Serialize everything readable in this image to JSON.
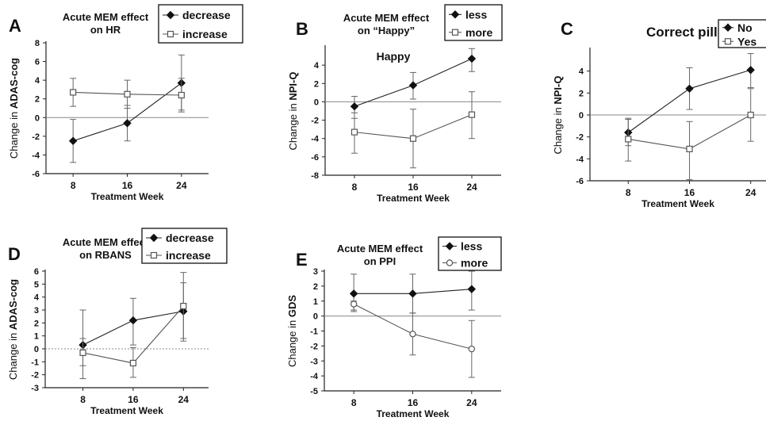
{
  "chart_data": [
    {
      "panel": "A",
      "type": "line",
      "title": [
        "Acute MEM effect",
        "on HR"
      ],
      "xlabel": "Treatment Week",
      "ylabel": [
        "Change in ",
        "ADAS-cog"
      ],
      "x": [
        8,
        16,
        24
      ],
      "xlim": [
        4,
        28
      ],
      "ylim": [
        -6,
        8
      ],
      "yticks": [
        -6,
        -4,
        -2,
        0,
        2,
        4,
        6,
        8
      ],
      "zero_line": "solid",
      "legend_placement": "top-right",
      "series": [
        {
          "name": "decrease",
          "marker": "diamond-filled",
          "values": [
            -2.5,
            -0.6,
            3.7
          ],
          "err_low": [
            -4.8,
            -2.5,
            0.8
          ],
          "err_high": [
            -0.2,
            1.3,
            6.7
          ]
        },
        {
          "name": "increase",
          "marker": "square-open",
          "values": [
            2.7,
            2.5,
            2.4
          ],
          "err_low": [
            1.2,
            1.0,
            0.6
          ],
          "err_high": [
            4.2,
            4.0,
            4.2
          ]
        }
      ]
    },
    {
      "panel": "B",
      "type": "line",
      "title": [
        "Acute MEM effect",
        "on “Happy”"
      ],
      "annotation": "Happy",
      "xlabel": "Treatment Week",
      "ylabel": [
        "Change in ",
        "NPI-Q"
      ],
      "x": [
        8,
        16,
        24
      ],
      "xlim": [
        4,
        28
      ],
      "ylim": [
        -8,
        6
      ],
      "yticks": [
        -8,
        -6,
        -4,
        -2,
        0,
        2,
        4
      ],
      "zero_line": "solid",
      "legend_placement": "top-right",
      "series": [
        {
          "name": "less",
          "marker": "diamond-filled",
          "values": [
            -0.5,
            1.8,
            4.7
          ],
          "err_low": [
            -1.8,
            0.3,
            3.3
          ],
          "err_high": [
            0.6,
            3.2,
            5.8
          ]
        },
        {
          "name": "more",
          "marker": "square-open",
          "values": [
            -3.3,
            -4.0,
            -1.4
          ],
          "err_low": [
            -5.6,
            -7.2,
            -4.0
          ],
          "err_high": [
            -1.2,
            -0.8,
            1.1
          ]
        }
      ]
    },
    {
      "panel": "C",
      "type": "line",
      "title": [
        "Correct pill guess?"
      ],
      "xlabel": "Treatment Week",
      "ylabel": [
        "Change in ",
        "NPI-Q"
      ],
      "x": [
        8,
        16,
        24
      ],
      "xlim": [
        3,
        26
      ],
      "ylim": [
        -6,
        6
      ],
      "yticks": [
        -6,
        -4,
        -2,
        0,
        2,
        4
      ],
      "zero_line": "solid",
      "legend_placement": "top-right",
      "series": [
        {
          "name": "No",
          "marker": "diamond-filled",
          "values": [
            -1.6,
            2.4,
            4.1
          ],
          "err_low": [
            -2.8,
            0.5,
            2.5
          ],
          "err_high": [
            -0.3,
            4.3,
            5.6
          ]
        },
        {
          "name": "Yes",
          "marker": "square-open",
          "values": [
            -2.2,
            -3.1,
            0.0
          ],
          "err_low": [
            -4.2,
            -5.9,
            -2.4
          ],
          "err_high": [
            -0.4,
            -0.6,
            2.4
          ]
        }
      ]
    },
    {
      "panel": "D",
      "type": "line",
      "title": [
        "Acute MEM effect",
        "on RBANS"
      ],
      "xlabel": "Treatment Week",
      "ylabel": [
        "Change in ",
        "ADAS-cog"
      ],
      "x": [
        8,
        16,
        24
      ],
      "xlim": [
        2,
        28
      ],
      "ylim": [
        -3,
        6
      ],
      "yticks": [
        -3,
        -2,
        -1,
        0,
        1,
        2,
        3,
        4,
        5,
        6
      ],
      "zero_line": "dotted",
      "legend_placement": "top-right",
      "series": [
        {
          "name": "decrease",
          "marker": "diamond-filled",
          "values": [
            0.3,
            2.2,
            2.9
          ],
          "err_low": [
            -2.3,
            0.3,
            0.6
          ],
          "err_high": [
            3.0,
            3.9,
            5.1
          ]
        },
        {
          "name": "increase",
          "marker": "square-open",
          "values": [
            -0.3,
            -1.1,
            3.3
          ],
          "err_low": [
            -1.3,
            -2.2,
            0.8
          ],
          "err_high": [
            0.8,
            0.1,
            5.9
          ]
        }
      ]
    },
    {
      "panel": "E",
      "type": "line",
      "title": [
        "Acute MEM effect",
        "on PPI"
      ],
      "xlabel": "Treatment Week",
      "ylabel": [
        "Change in ",
        "GDS"
      ],
      "x": [
        8,
        16,
        24
      ],
      "xlim": [
        4,
        28
      ],
      "ylim": [
        -5,
        3
      ],
      "yticks": [
        -5,
        -4,
        -3,
        -2,
        -1,
        0,
        1,
        2,
        3
      ],
      "zero_line": "solid",
      "legend_placement": "top-right",
      "series": [
        {
          "name": "less",
          "marker": "diamond-filled",
          "values": [
            1.5,
            1.5,
            1.8
          ],
          "err_low": [
            0.3,
            0.2,
            0.4
          ],
          "err_high": [
            2.8,
            2.8,
            3.0
          ]
        },
        {
          "name": "more",
          "marker": "circle-open",
          "values": [
            0.8,
            -1.2,
            -2.2
          ],
          "err_low": [
            0.4,
            -2.6,
            -4.1
          ],
          "err_high": [
            1.0,
            0.2,
            -0.3
          ]
        }
      ]
    }
  ]
}
